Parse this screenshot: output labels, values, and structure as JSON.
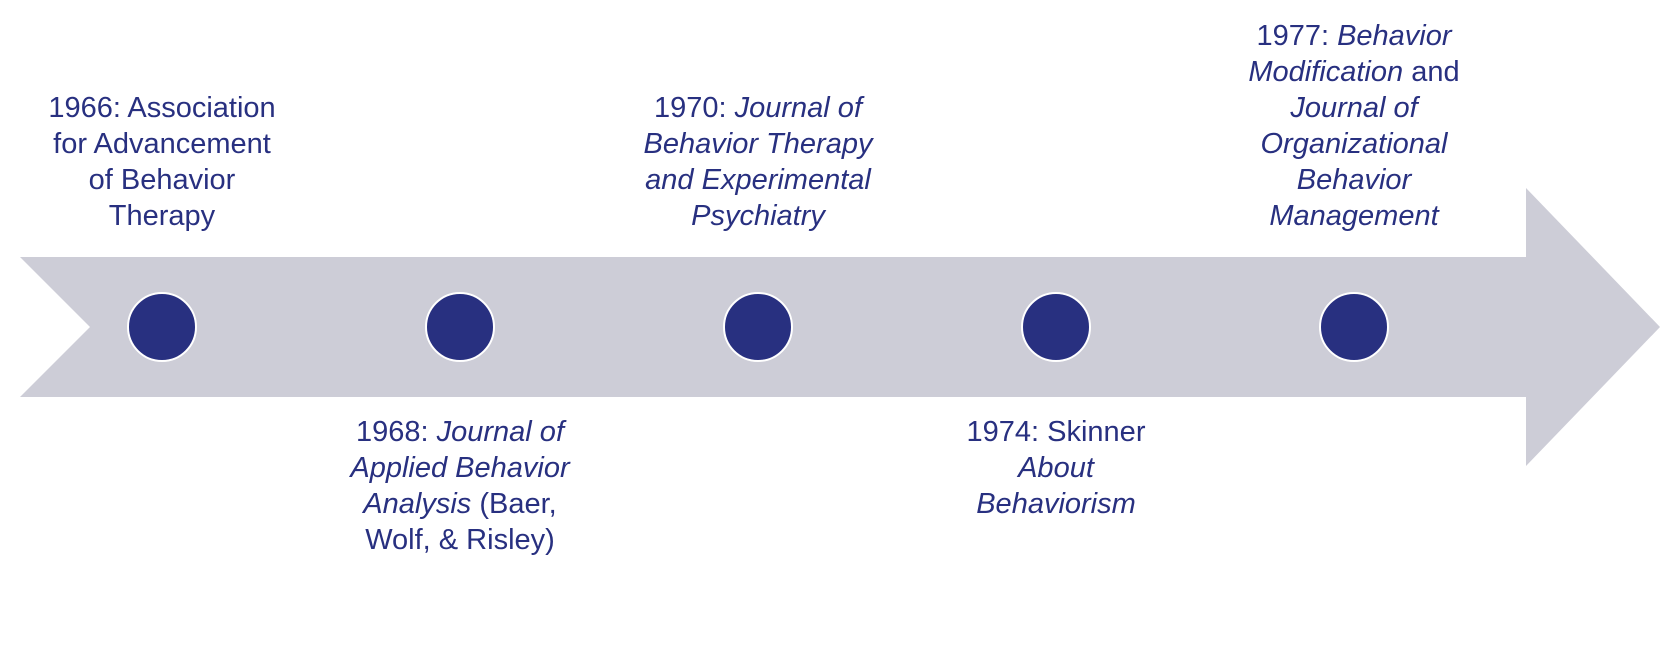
{
  "colors": {
    "arrow": "#cdcdd7",
    "dot": "#283080",
    "dot_outline": "#ffffff",
    "text": "#283080"
  },
  "events": [
    {
      "id": "1966",
      "position": "above",
      "segments": [
        {
          "text": "1966: Association for Advancement of Behavior Therapy",
          "italic": false
        }
      ]
    },
    {
      "id": "1968",
      "position": "below",
      "segments": [
        {
          "text": "1968: ",
          "italic": false
        },
        {
          "text": "Journal of Applied Behavior Analysis",
          "italic": true
        },
        {
          "text": " (Baer, Wolf, & Risley)",
          "italic": false
        }
      ]
    },
    {
      "id": "1970",
      "position": "above",
      "segments": [
        {
          "text": "1970: ",
          "italic": false
        },
        {
          "text": "Journal of Behavior Therapy and Experimental Psychiatry",
          "italic": true
        }
      ]
    },
    {
      "id": "1974",
      "position": "below",
      "segments": [
        {
          "text": "1974: Skinner ",
          "italic": false
        },
        {
          "text": "About Behaviorism",
          "italic": true
        }
      ]
    },
    {
      "id": "1977",
      "position": "above",
      "segments": [
        {
          "text": "1977: ",
          "italic": false
        },
        {
          "text": "Behavior Modification",
          "italic": true
        },
        {
          "text": " and ",
          "italic": false
        },
        {
          "text": "Journal of Organizational Behavior Management",
          "italic": true
        }
      ]
    }
  ]
}
